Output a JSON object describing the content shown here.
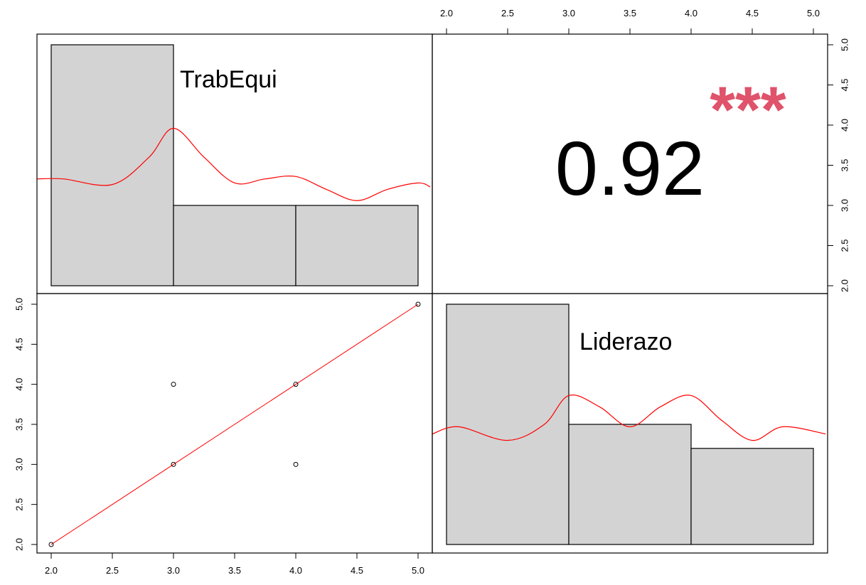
{
  "colors": {
    "bar_fill": "#d3d3d3",
    "density": "#ff0000",
    "fit_line": "#ff0000",
    "stars": "#df536b",
    "point": "#000000",
    "axis": "#000000"
  },
  "chart_data": {
    "type": "scatter-matrix",
    "variables": [
      "TrabEqui",
      "Liderazo"
    ],
    "axis_range": [
      2.0,
      5.0
    ],
    "tick_labels": [
      "2.0",
      "2.5",
      "3.0",
      "3.5",
      "4.0",
      "4.5",
      "5.0"
    ],
    "correlation": {
      "value": "0.92",
      "significance": "***"
    },
    "scatter": {
      "x_variable": "TrabEqui",
      "y_variable": "Liderazo",
      "points": [
        {
          "x": 2,
          "y": 2
        },
        {
          "x": 3,
          "y": 3
        },
        {
          "x": 3,
          "y": 4
        },
        {
          "x": 4,
          "y": 3
        },
        {
          "x": 4,
          "y": 4
        },
        {
          "x": 5,
          "y": 5
        }
      ],
      "fit_line": [
        {
          "x": 2,
          "y": 2
        },
        {
          "x": 5,
          "y": 5
        }
      ]
    },
    "histograms": [
      {
        "variable": "TrabEqui",
        "bins": [
          {
            "from": 2,
            "to": 3,
            "count": 3
          },
          {
            "from": 3,
            "to": 4,
            "count": 1
          },
          {
            "from": 4,
            "to": 5,
            "count": 1
          }
        ],
        "density_y": [
          3.33,
          3.33,
          3.26,
          3.6,
          3.96,
          3.6,
          3.28,
          3.33,
          3.36,
          3.2,
          3.06,
          3.2,
          3.28,
          3.23
        ],
        "density_x": [
          1.88,
          2.1,
          2.5,
          2.8,
          3.0,
          3.25,
          3.5,
          3.75,
          4.0,
          4.25,
          4.5,
          4.75,
          5.0,
          5.1
        ]
      },
      {
        "variable": "Liderazo",
        "bins": [
          {
            "from": 2,
            "to": 3,
            "count": 2
          },
          {
            "from": 3,
            "to": 4,
            "count": 1
          },
          {
            "from": 4,
            "to": 5,
            "count": 0.8
          }
        ],
        "density_y": [
          3.38,
          3.47,
          3.3,
          3.5,
          3.86,
          3.72,
          3.47,
          3.72,
          3.86,
          3.55,
          3.3,
          3.47,
          3.38
        ],
        "density_x": [
          1.88,
          2.1,
          2.5,
          2.8,
          3.0,
          3.25,
          3.5,
          3.75,
          4.0,
          4.25,
          4.5,
          4.75,
          5.1
        ]
      }
    ]
  }
}
